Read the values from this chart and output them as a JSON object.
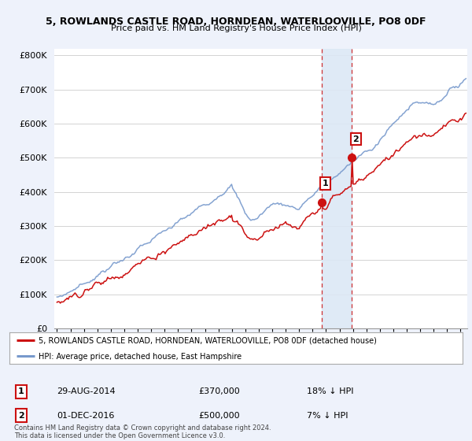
{
  "title1": "5, ROWLANDS CASTLE ROAD, HORNDEAN, WATERLOOVILLE, PO8 0DF",
  "title2": "Price paid vs. HM Land Registry's House Price Index (HPI)",
  "ylim": [
    0,
    820000
  ],
  "xlim_start": 1994.8,
  "xlim_end": 2025.5,
  "hpi_color": "#7799cc",
  "price_color": "#cc1111",
  "marker1_x": 2014.66,
  "marker1_y": 370000,
  "marker2_x": 2016.92,
  "marker2_y": 500000,
  "vline1_x": 2014.66,
  "vline2_x": 2016.92,
  "legend_red_label": "5, ROWLANDS CASTLE ROAD, HORNDEAN, WATERLOOVILLE, PO8 0DF (detached house)",
  "legend_blue_label": "HPI: Average price, detached house, East Hampshire",
  "sale1_label": "1",
  "sale1_date": "29-AUG-2014",
  "sale1_price": "£370,000",
  "sale1_hpi": "18% ↓ HPI",
  "sale2_label": "2",
  "sale2_date": "01-DEC-2016",
  "sale2_price": "£500,000",
  "sale2_hpi": "7% ↓ HPI",
  "footer": "Contains HM Land Registry data © Crown copyright and database right 2024.\nThis data is licensed under the Open Government Licence v3.0.",
  "bg_color": "#eef2fb",
  "plot_bg": "#ffffff",
  "grid_color": "#cccccc",
  "span_color": "#dce8f5"
}
